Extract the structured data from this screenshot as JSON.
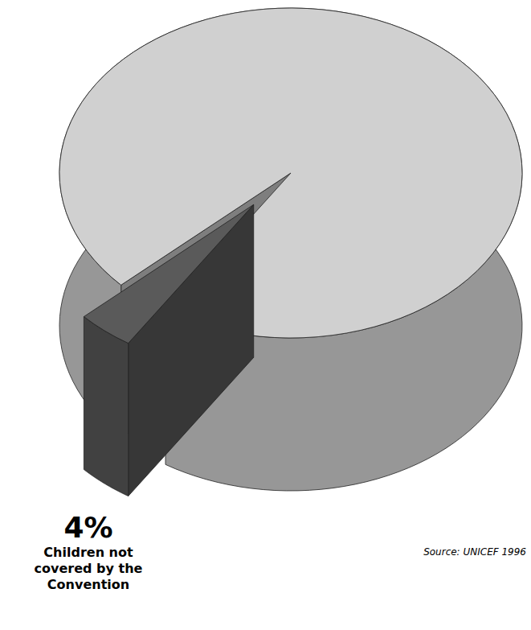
{
  "chart_data": {
    "type": "pie",
    "categories": [
      null,
      "Children not covered by the Convention"
    ],
    "values": [
      96,
      4
    ],
    "colors": [
      "#d0d0d0",
      "#5a5a5a"
    ],
    "data_labels": true,
    "value_labels": [
      null,
      "4%"
    ],
    "source": "Source: UNICEF 1996"
  }
}
